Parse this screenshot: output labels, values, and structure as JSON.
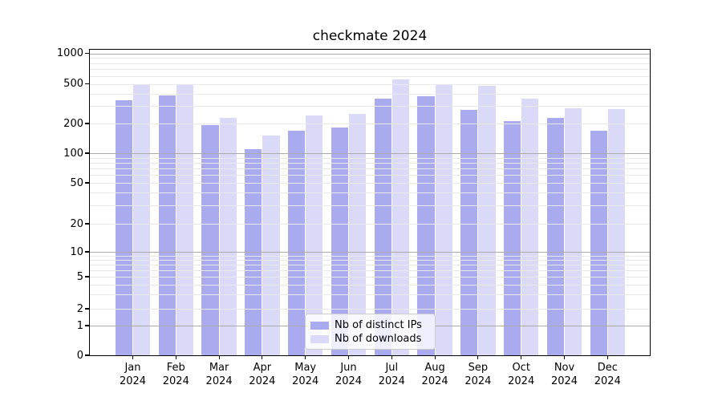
{
  "title": "checkmate 2024",
  "legend": {
    "items": [
      {
        "label": "Nb of distinct IPs",
        "color": "#aaaaee"
      },
      {
        "label": "Nb of downloads",
        "color": "#dadaf8"
      }
    ]
  },
  "axes": {
    "y_tick_labels": [
      "0",
      "1",
      "2",
      "5",
      "10",
      "20",
      "50",
      "100",
      "200",
      "500",
      "1000"
    ],
    "x_tick_labels": [
      "Jan\n2024",
      "Feb\n2024",
      "Mar\n2024",
      "Apr\n2024",
      "May\n2024",
      "Jun\n2024",
      "Jul\n2024",
      "Aug\n2024",
      "Sep\n2024",
      "Oct\n2024",
      "Nov\n2024",
      "Dec\n2024"
    ]
  },
  "colors": {
    "bar_dark": "#aaaaee",
    "bar_light": "#dadaf8",
    "grid_major": "#ababab",
    "grid_minor": "#e8e8e8"
  },
  "chart_data": {
    "type": "bar",
    "title": "checkmate 2024",
    "categories": [
      "Jan 2024",
      "Feb 2024",
      "Mar 2024",
      "Apr 2024",
      "May 2024",
      "Jun 2024",
      "Jul 2024",
      "Aug 2024",
      "Sep 2024",
      "Oct 2024",
      "Nov 2024",
      "Dec 2024"
    ],
    "series": [
      {
        "name": "Nb of distinct IPs",
        "color": "#aaaaee",
        "values": [
          342,
          380,
          193,
          110,
          170,
          181,
          357,
          375,
          272,
          211,
          226,
          168
        ]
      },
      {
        "name": "Nb of downloads",
        "color": "#dadaf8",
        "values": [
          486,
          495,
          229,
          150,
          241,
          251,
          553,
          486,
          480,
          357,
          284,
          280
        ]
      }
    ],
    "xlabel": "",
    "ylabel": "",
    "yscale": "log-like (compressed below 10, linear 0-1 segment, 0 baseline shown)",
    "y_ticks": [
      0,
      1,
      2,
      5,
      10,
      20,
      50,
      100,
      200,
      500,
      1000
    ],
    "ylim": [
      0,
      1090
    ],
    "grid": true,
    "grid_above_bars": true,
    "legend_position": "lower center"
  }
}
